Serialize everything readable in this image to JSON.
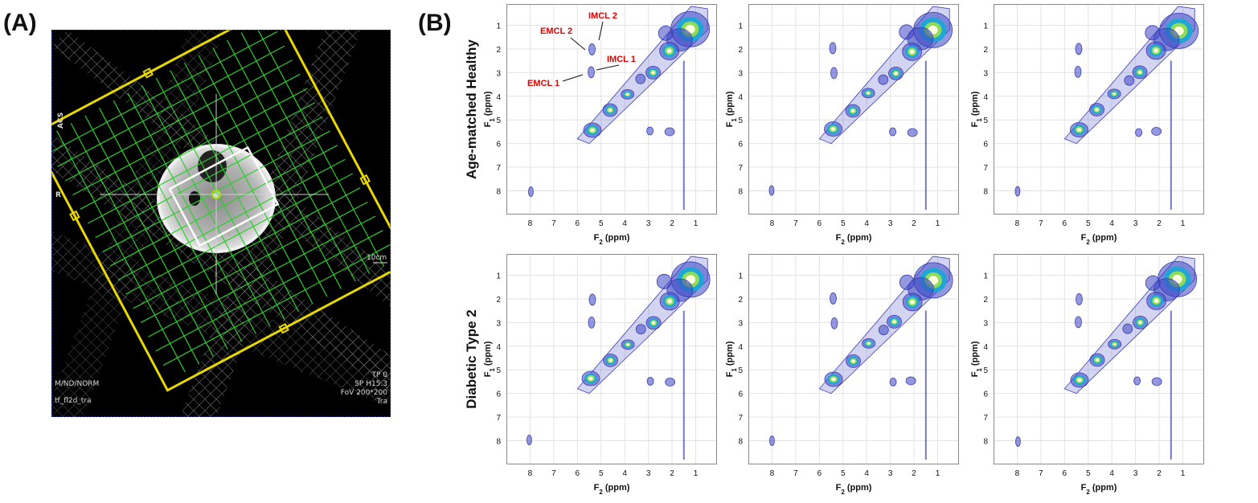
{
  "panel_a": {
    "label": "(A)",
    "overlay_text": {
      "orientation_top": "ACS",
      "orientation_left": "R",
      "scale": "10cm",
      "bottom_left_1": "M/ND/NORM",
      "bottom_left_2": "tf_fl2d_tra",
      "bottom_right_1": "TP 0",
      "bottom_right_2": "SP H15.3",
      "bottom_right_3": "FoV 200*200",
      "bottom_right_4": "Tra"
    }
  },
  "panel_b": {
    "label": "(B)",
    "rows": [
      {
        "label": "Age-matched Healthy"
      },
      {
        "label": "Diabetic Type 2"
      }
    ],
    "x_ticks": [
      "8",
      "7",
      "6",
      "5",
      "4",
      "3",
      "2",
      "1"
    ],
    "y_ticks": [
      "1",
      "2",
      "3",
      "4",
      "5",
      "6",
      "7",
      "8"
    ],
    "x_axis": {
      "main": "F",
      "sub": "2",
      "unit": " (ppm)"
    },
    "y_axis": {
      "main": "F",
      "sub": "1",
      "unit": " (ppm)"
    },
    "annotations": {
      "imcl2": "IMCL 2",
      "emcl2": "EMCL 2",
      "imcl1": "IMCL 1",
      "emcl1": "EMCL 1"
    },
    "colors": {
      "contour": "#3a3db0",
      "hot": "#ffffe0",
      "annotation": "#e00000"
    }
  }
}
